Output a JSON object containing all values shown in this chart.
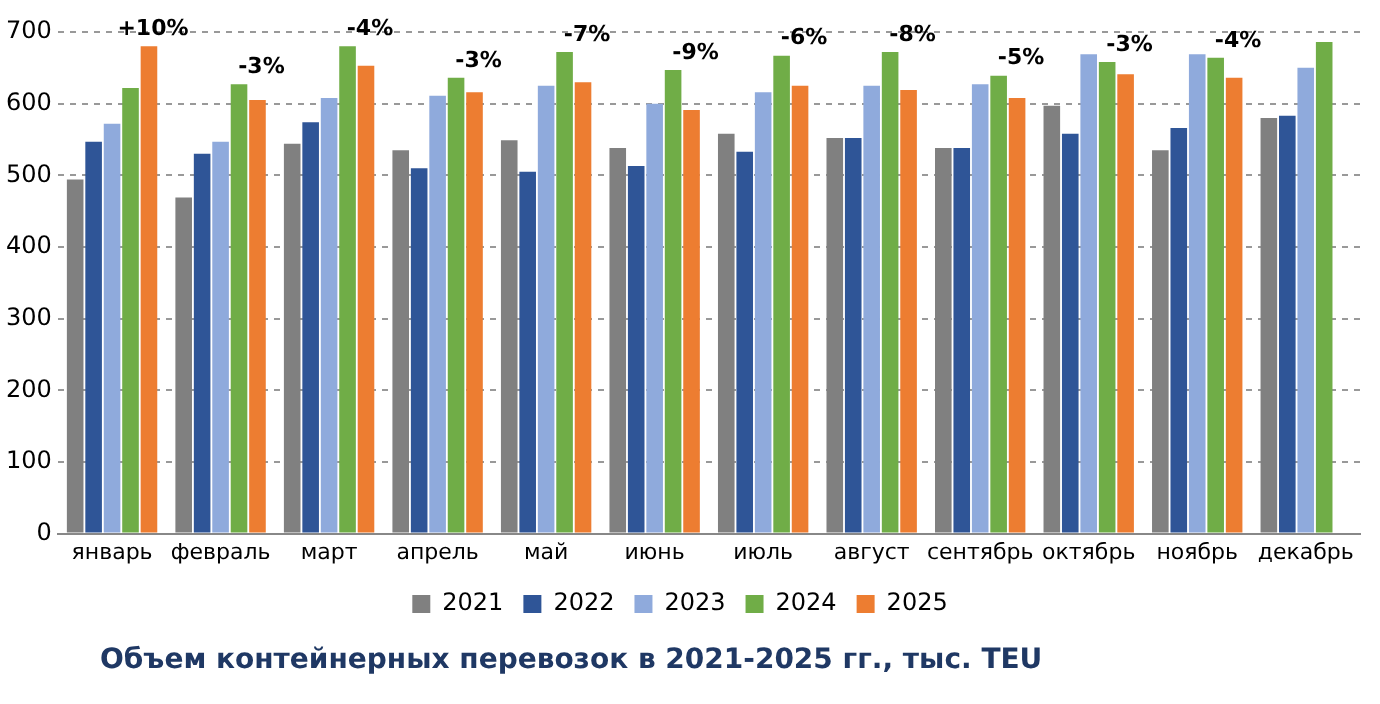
{
  "chart_data": {
    "type": "bar",
    "title": "Объем контейнерных перевозок в 2021-2025 гг., тыс. TEU",
    "categories": [
      "январь",
      "февраль",
      "март",
      "апрель",
      "май",
      "июнь",
      "июль",
      "август",
      "сентябрь",
      "октябрь",
      "ноябрь",
      "декабрь"
    ],
    "series": [
      {
        "name": "2021",
        "color": "#808080",
        "values": [
          494,
          469,
          544,
          535,
          549,
          538,
          558,
          552,
          538,
          597,
          535,
          580
        ]
      },
      {
        "name": "2022",
        "color": "#2f5597",
        "values": [
          547,
          530,
          574,
          510,
          505,
          513,
          533,
          552,
          538,
          558,
          566,
          583
        ]
      },
      {
        "name": "2023",
        "color": "#8faadc",
        "values": [
          572,
          547,
          608,
          611,
          625,
          600,
          616,
          625,
          627,
          669,
          669,
          650
        ]
      },
      {
        "name": "2024",
        "color": "#70ad47",
        "values": [
          622,
          627,
          680,
          636,
          672,
          647,
          667,
          672,
          639,
          658,
          664,
          686
        ]
      },
      {
        "name": "2025",
        "color": "#ed7d31",
        "values": [
          680,
          605,
          653,
          616,
          630,
          591,
          625,
          619,
          608,
          641,
          636,
          null
        ]
      }
    ],
    "annotations": [
      "+10%",
      "-3%",
      "-4%",
      "-3%",
      "-7%",
      "-9%",
      "-6%",
      "-8%",
      "-5%",
      "-3%",
      "-4%"
    ],
    "ylim": [
      0,
      700
    ],
    "yticks": [
      0,
      100,
      200,
      300,
      400,
      500,
      600,
      700
    ],
    "grid": "y",
    "legend": "bottom"
  }
}
